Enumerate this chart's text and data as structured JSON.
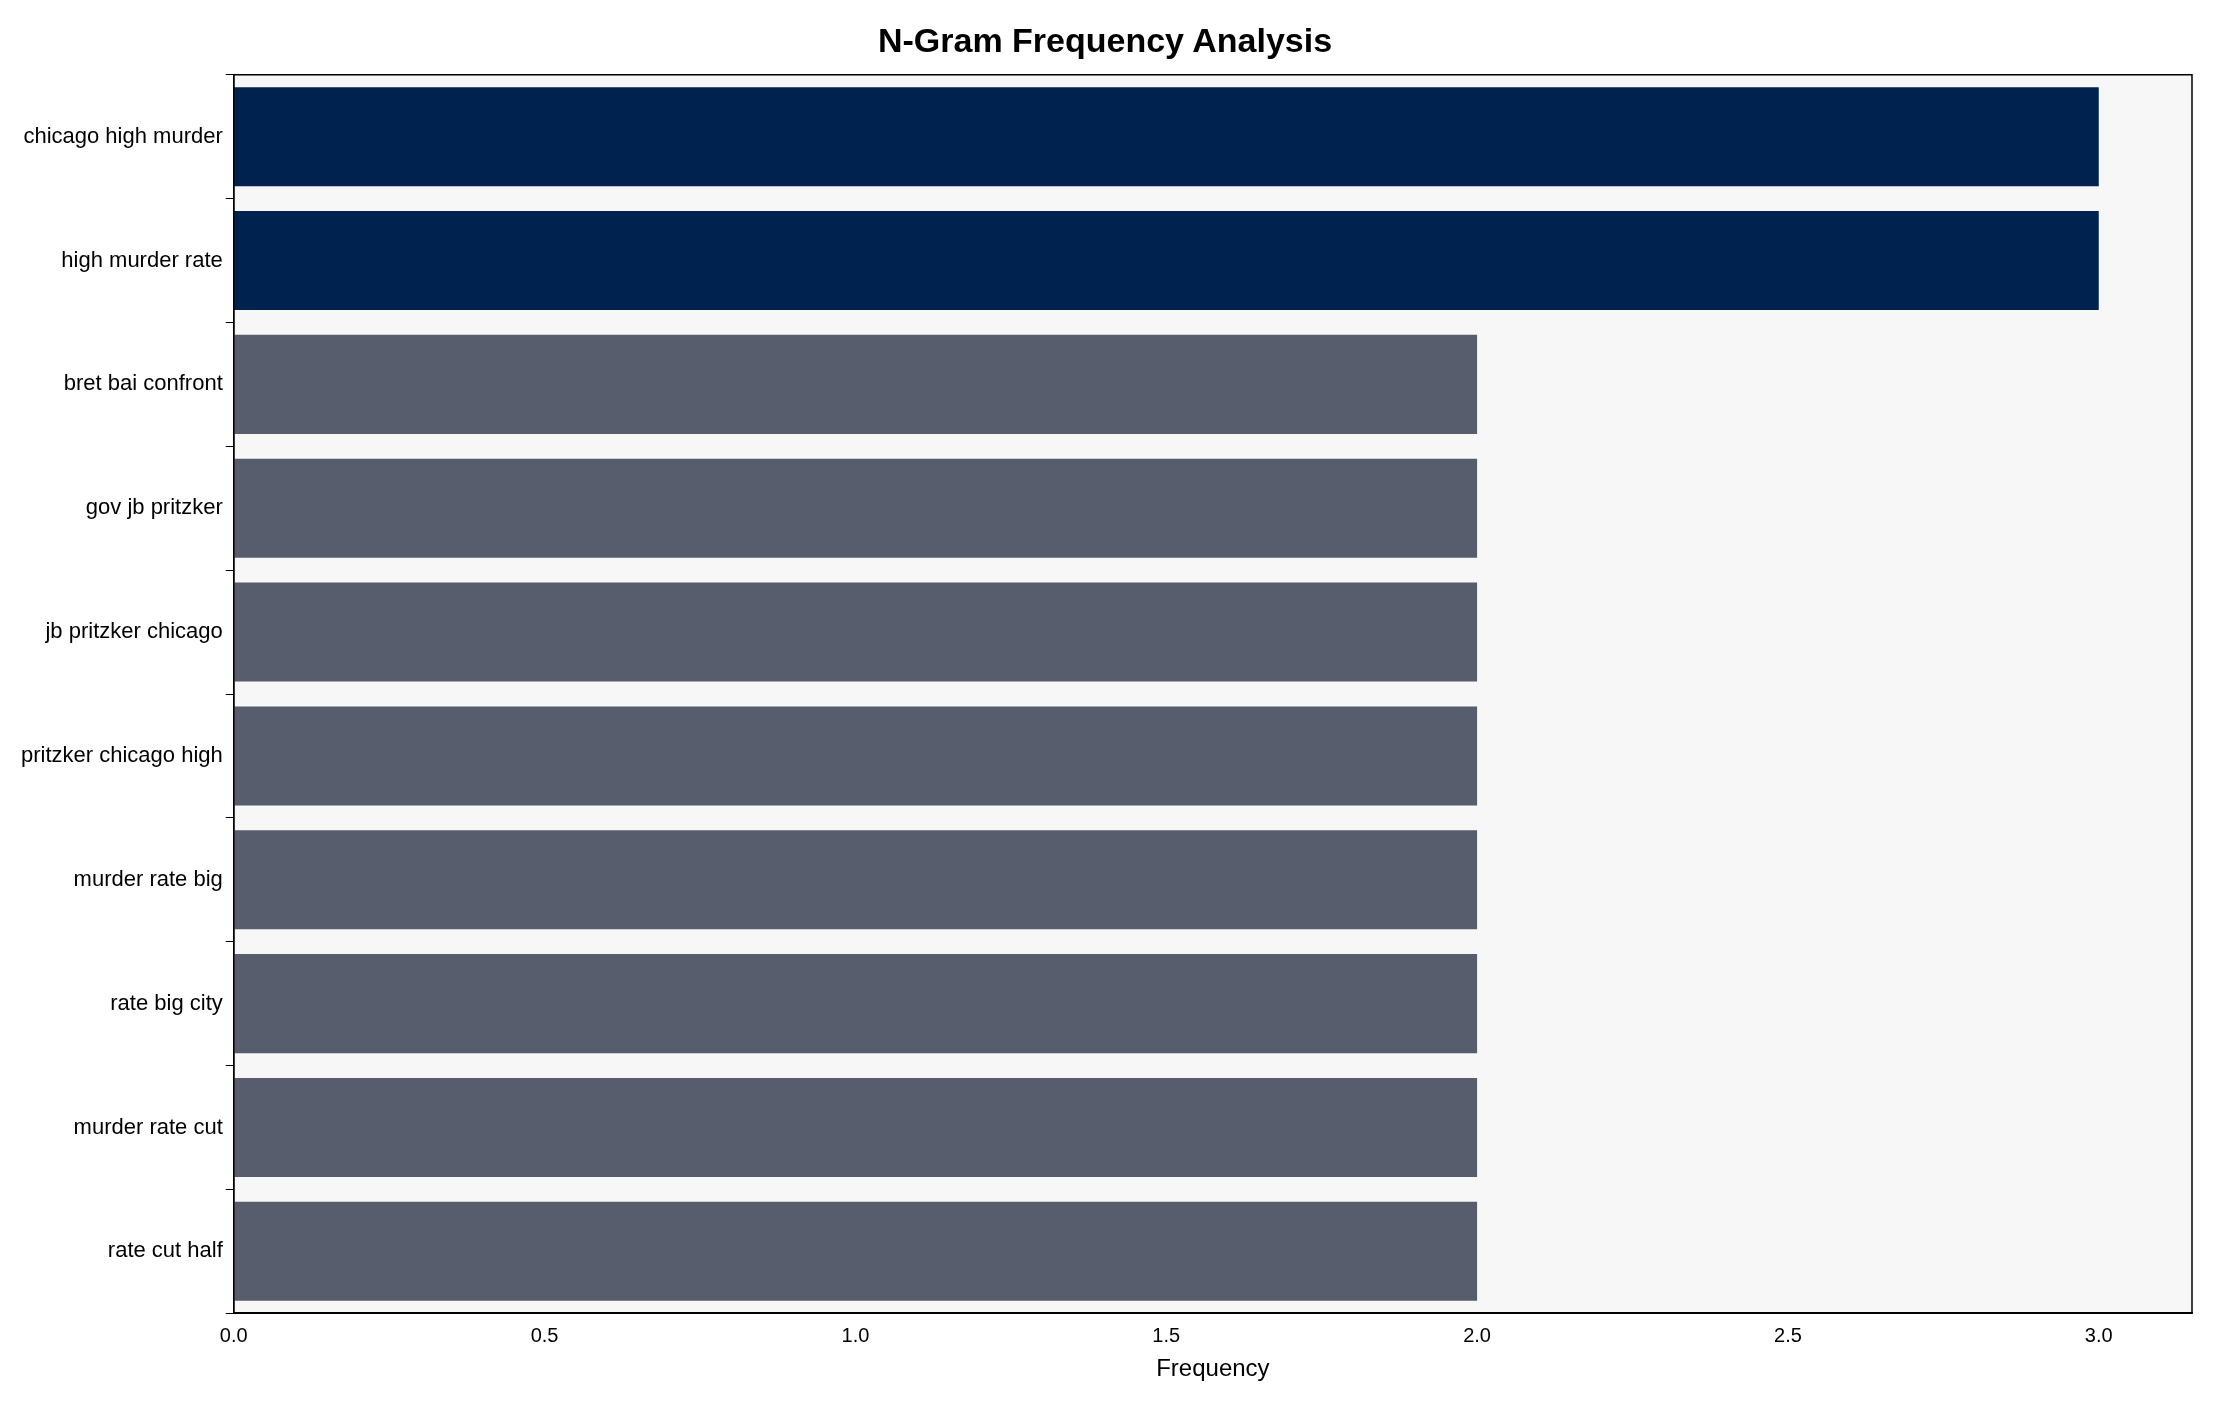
{
  "chart_data": {
    "type": "bar",
    "orientation": "horizontal",
    "title": "N-Gram Frequency Analysis",
    "xlabel": "Frequency",
    "categories": [
      "chicago high murder",
      "high murder rate",
      "bret bai confront",
      "gov jb pritzker",
      "jb pritzker chicago",
      "pritzker chicago high",
      "murder rate big",
      "rate big city",
      "murder rate cut",
      "rate cut half"
    ],
    "values": [
      3,
      3,
      2,
      2,
      2,
      2,
      2,
      2,
      2,
      2
    ],
    "colors": [
      "#00224e",
      "#00224e",
      "#575d6d",
      "#575d6d",
      "#575d6d",
      "#575d6d",
      "#575d6d",
      "#575d6d",
      "#575d6d",
      "#575d6d"
    ],
    "xlim": [
      0,
      3.15
    ],
    "xticks": [
      {
        "value": 0,
        "label": "0.0"
      },
      {
        "value": 0.5,
        "label": "0.5"
      },
      {
        "value": 1,
        "label": "1.0"
      },
      {
        "value": 1.5,
        "label": "1.5"
      },
      {
        "value": 2,
        "label": "2.0"
      },
      {
        "value": 2.5,
        "label": "2.5"
      },
      {
        "value": 3,
        "label": "3.0"
      }
    ],
    "grid": false,
    "legend": false
  }
}
